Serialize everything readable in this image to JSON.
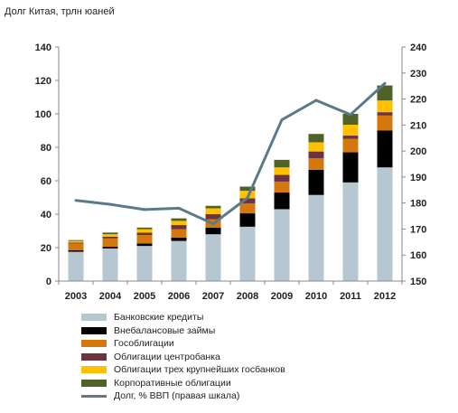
{
  "chart_data": {
    "type": "bar",
    "stacked": true,
    "title": "Долг Китая, трлн юаней",
    "categories": [
      "2003",
      "2004",
      "2005",
      "2006",
      "2007",
      "2008",
      "2009",
      "2010",
      "2011",
      "2012"
    ],
    "ylim": [
      0,
      140
    ],
    "y_ticks": [
      "0",
      "20",
      "40",
      "60",
      "80",
      "100",
      "120",
      "140"
    ],
    "y2lim": [
      150,
      240
    ],
    "y2_ticks": [
      "150",
      "160",
      "170",
      "180",
      "190",
      "200",
      "210",
      "220",
      "230",
      "240"
    ],
    "grid": false,
    "legend_position": "bottom",
    "series": [
      {
        "name": "Банковские кредиты",
        "color": "#b7c7d2",
        "values": [
          17.5,
          19.5,
          21,
          24,
          28,
          32.5,
          43,
          51.5,
          59,
          68
        ]
      },
      {
        "name": "Внебалансовые займы",
        "color": "#000000",
        "values": [
          1,
          1,
          1.5,
          2,
          4,
          8,
          10,
          15,
          18,
          22
        ]
      },
      {
        "name": "Гособлигации",
        "color": "#d4780e",
        "values": [
          4,
          5,
          5,
          5,
          5,
          6,
          6.5,
          7,
          8,
          9
        ]
      },
      {
        "name": "Облигации центробанка",
        "color": "#6b3340",
        "values": [
          0.5,
          1,
          1.5,
          2.5,
          3,
          3,
          4,
          4,
          2,
          2
        ]
      },
      {
        "name": "Облигации трех крупнейших госбанков",
        "color": "#ffc000",
        "values": [
          1,
          1.5,
          2,
          2.5,
          3.5,
          4.5,
          4.5,
          5.5,
          6.5,
          7
        ]
      },
      {
        "name": "Корпоративные облигации",
        "color": "#4f6228",
        "values": [
          0.5,
          1,
          1,
          1.5,
          1.5,
          2.5,
          4.5,
          5,
          6.5,
          9
        ]
      }
    ],
    "line_series": {
      "name": "Долг, % ВВП (правая шкала)",
      "color": "#5a7a8c",
      "axis": "right",
      "values": [
        181,
        179.5,
        177.5,
        178,
        172,
        182,
        212,
        219.5,
        214,
        226
      ]
    }
  }
}
